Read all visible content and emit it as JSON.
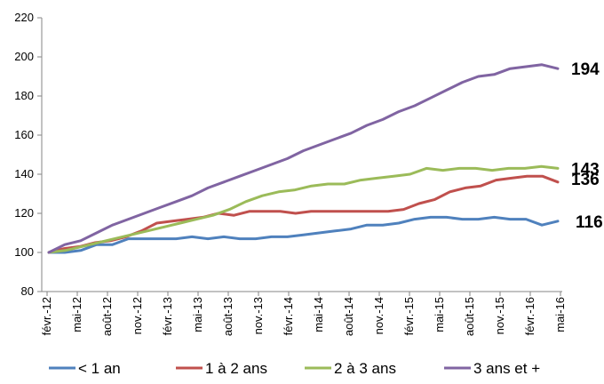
{
  "chart_data": {
    "type": "line",
    "x_tick_labels": [
      "févr.-12",
      "mai-12",
      "août-12",
      "nov.-12",
      "févr.-13",
      "mai-13",
      "août-13",
      "nov.-13",
      "févr.-14",
      "mai-14",
      "août-14",
      "nov.-14",
      "févr.-15",
      "mai-15",
      "août-15",
      "nov.-15",
      "févr.-16",
      "mai-16"
    ],
    "ylim": [
      80,
      220
    ],
    "yticks": [
      80,
      100,
      120,
      140,
      160,
      180,
      200,
      220
    ],
    "legend_position": "bottom",
    "grid": false,
    "series": [
      {
        "name": "< 1 an",
        "color": "#4f81bd",
        "end_label": "116",
        "values": [
          100,
          100,
          101,
          104,
          104,
          107,
          107,
          107,
          107,
          108,
          107,
          108,
          107,
          107,
          108,
          108,
          109,
          110,
          111,
          112,
          114,
          114,
          115,
          117,
          118,
          118,
          117,
          117,
          118,
          117,
          117,
          114,
          116
        ]
      },
      {
        "name": "1 à 2 ans",
        "color": "#c0504d",
        "end_label": "136",
        "values": [
          100,
          102,
          103,
          105,
          106,
          108,
          111,
          115,
          116,
          117,
          118,
          120,
          119,
          121,
          121,
          121,
          120,
          121,
          121,
          121,
          121,
          121,
          121,
          122,
          125,
          127,
          131,
          133,
          134,
          137,
          138,
          139,
          139,
          136
        ]
      },
      {
        "name": "2 à 3 ans",
        "color": "#9bbb59",
        "end_label": "143",
        "values": [
          100,
          101,
          103,
          105,
          107,
          109,
          111,
          113,
          115,
          117,
          119,
          122,
          126,
          129,
          131,
          132,
          134,
          135,
          135,
          137,
          138,
          139,
          140,
          143,
          142,
          143,
          143,
          142,
          143,
          143,
          144,
          143
        ]
      },
      {
        "name": "3 ans et +",
        "color": "#8064a2",
        "end_label": "194",
        "values": [
          100,
          104,
          106,
          110,
          114,
          117,
          120,
          123,
          126,
          129,
          133,
          136,
          139,
          142,
          145,
          148,
          152,
          155,
          158,
          161,
          165,
          168,
          172,
          175,
          179,
          183,
          187,
          190,
          191,
          194,
          195,
          196,
          194
        ]
      }
    ]
  }
}
